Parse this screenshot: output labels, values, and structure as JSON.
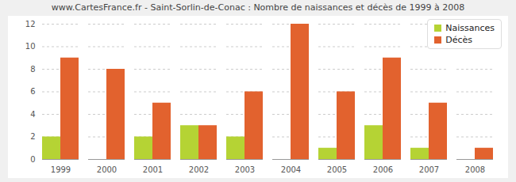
{
  "chart_data": {
    "type": "bar",
    "title": "www.CartesFrance.fr - Saint-Sorlin-de-Conac : Nombre de naissances et décès de 1999 à 2008",
    "categories": [
      "1999",
      "2000",
      "2001",
      "2002",
      "2003",
      "2004",
      "2005",
      "2006",
      "2007",
      "2008"
    ],
    "series": [
      {
        "name": "Naissances",
        "color": "#b5d334",
        "values": [
          2,
          0,
          2,
          3,
          2,
          0,
          1,
          3,
          1,
          0
        ]
      },
      {
        "name": "Décès",
        "color": "#e2622e",
        "values": [
          9,
          8,
          5,
          3,
          6,
          12,
          6,
          9,
          5,
          1
        ]
      }
    ],
    "ylim": [
      0,
      12
    ],
    "yticks": [
      0,
      2,
      4,
      6,
      8,
      10,
      12
    ],
    "grid": true,
    "legend": "top-right"
  }
}
